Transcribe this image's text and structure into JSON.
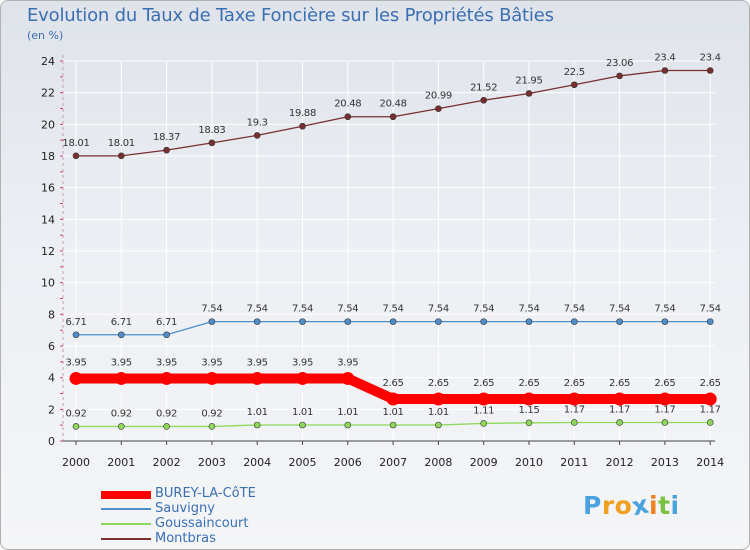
{
  "chart_data": {
    "type": "line",
    "title": "Evolution du Taux de Taxe Foncière sur les Propriétés Bâties",
    "subtitle": "(en %)",
    "xlabel": "",
    "ylabel": "",
    "ylim": [
      0,
      24
    ],
    "yticks": [
      "0",
      "2",
      "4",
      "6",
      "8",
      "10",
      "12",
      "14",
      "16",
      "18",
      "20",
      "22",
      "24"
    ],
    "categories": [
      "2000",
      "2001",
      "2002",
      "2003",
      "2004",
      "2005",
      "2006",
      "2007",
      "2008",
      "2009",
      "2010",
      "2011",
      "2012",
      "2013",
      "2014"
    ],
    "series": [
      {
        "name": "BUREY-LA-CôTE",
        "color": "#ff0000",
        "values": [
          3.95,
          3.95,
          3.95,
          3.95,
          3.95,
          3.95,
          3.95,
          2.65,
          2.65,
          2.65,
          2.65,
          2.65,
          2.65,
          2.65,
          2.65
        ],
        "labels": [
          "3.95",
          "3.95",
          "3.95",
          "3.95",
          "3.95",
          "3.95",
          "3.95",
          "2.65",
          "2.65",
          "2.65",
          "2.65",
          "2.65",
          "2.65",
          "2.65",
          "2.65"
        ]
      },
      {
        "name": "Sauvigny",
        "color": "#4f8fcc",
        "values": [
          6.71,
          6.71,
          6.71,
          7.54,
          7.54,
          7.54,
          7.54,
          7.54,
          7.54,
          7.54,
          7.54,
          7.54,
          7.54,
          7.54,
          7.54
        ],
        "labels": [
          "6.71",
          "6.71",
          "6.71",
          "7.54",
          "7.54",
          "7.54",
          "7.54",
          "7.54",
          "7.54",
          "7.54",
          "7.54",
          "7.54",
          "7.54",
          "7.54",
          "7.54"
        ]
      },
      {
        "name": "Goussaincourt",
        "color": "#8ed85a",
        "values": [
          0.92,
          0.92,
          0.92,
          0.92,
          1.01,
          1.01,
          1.01,
          1.01,
          1.01,
          1.11,
          1.15,
          1.17,
          1.17,
          1.17,
          1.17
        ],
        "labels": [
          "0.92",
          "0.92",
          "0.92",
          "0.92",
          "1.01",
          "1.01",
          "1.01",
          "1.01",
          "1.01",
          "1.11",
          "1.15",
          "1.17",
          "1.17",
          "1.17",
          "1.17"
        ]
      },
      {
        "name": "Montbras",
        "color": "#7a2f2f",
        "values": [
          18.01,
          18.01,
          18.37,
          18.83,
          19.3,
          19.88,
          20.48,
          20.48,
          20.99,
          21.52,
          21.95,
          22.5,
          23.06,
          23.4,
          23.4
        ],
        "labels": [
          "18.01",
          "18.01",
          "18.37",
          "18.83",
          "19.3",
          "19.88",
          "20.48",
          "20.48",
          "20.99",
          "21.52",
          "21.95",
          "22.5",
          "23.06",
          "23.4",
          "23.4"
        ]
      }
    ],
    "grid": true,
    "legend": "bottom-left"
  },
  "logo": {
    "letters": [
      "P",
      "r",
      "o",
      "x",
      "i",
      "t",
      "i"
    ],
    "colors": [
      "#4aa3df",
      "#f0a020",
      "#f0a020",
      "#4aa3df",
      "#f08020",
      "#7cc242",
      "#4aa3df"
    ]
  }
}
